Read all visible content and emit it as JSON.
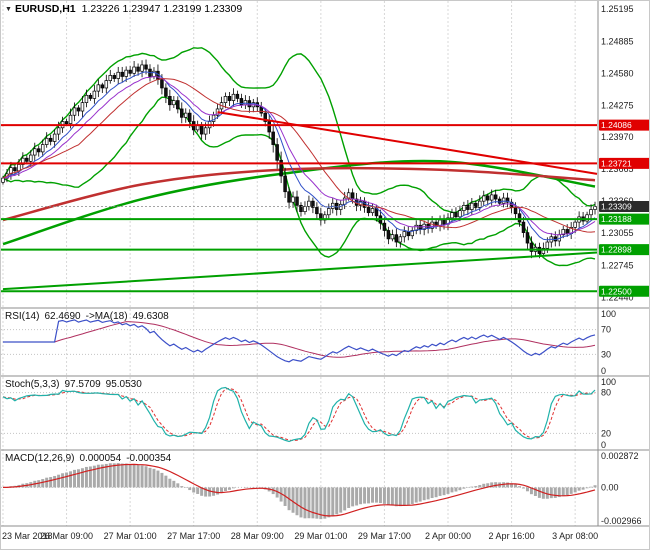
{
  "chart_data": {
    "type": "candlestick",
    "header": {
      "symbol": "EURUSD,H1",
      "ohlc": "1.23226 1.23947 1.23199 1.23309"
    },
    "bars": 150,
    "closes": [
      1.2358,
      1.2362,
      1.2368,
      1.2365,
      1.2371,
      1.2377,
      1.2374,
      1.238,
      1.2386,
      1.2383,
      1.239,
      1.2396,
      1.2393,
      1.24,
      1.2406,
      1.2412,
      1.241,
      1.2418,
      1.2425,
      1.2422,
      1.243,
      1.2437,
      1.2434,
      1.2441,
      1.2447,
      1.2444,
      1.2451,
      1.2456,
      1.2453,
      1.2459,
      1.2455,
      1.2461,
      1.2458,
      1.2464,
      1.246,
      1.2466,
      1.2462,
      1.2455,
      1.246,
      1.2452,
      1.2444,
      1.2436,
      1.2428,
      1.2432,
      1.2424,
      1.2416,
      1.242,
      1.2412,
      1.2404,
      1.2408,
      1.24,
      1.2406,
      1.2412,
      1.2418,
      1.2424,
      1.243,
      1.2436,
      1.2432,
      1.2438,
      1.2434,
      1.2428,
      1.2432,
      1.2426,
      1.243,
      1.2426,
      1.242,
      1.2412,
      1.2402,
      1.239,
      1.2375,
      1.236,
      1.2345,
      1.2335,
      1.234,
      1.2332,
      1.2326,
      1.2331,
      1.2336,
      1.233,
      1.2324,
      1.2318,
      1.2323,
      1.2329,
      1.2334,
      1.2328,
      1.2333,
      1.2339,
      1.2344,
      1.2338,
      1.2332,
      1.2336,
      1.233,
      1.2325,
      1.2329,
      1.2322,
      1.2315,
      1.2308,
      1.23,
      1.2304,
      1.2297,
      1.2302,
      1.2307,
      1.2303,
      1.2308,
      1.2313,
      1.2309,
      1.2314,
      1.231,
      1.2316,
      1.2312,
      1.2318,
      1.2314,
      1.232,
      1.2325,
      1.2321,
      1.2327,
      1.2332,
      1.2328,
      1.2334,
      1.233,
      1.2336,
      1.2341,
      1.2337,
      1.2342,
      1.2338,
      1.2334,
      1.2339,
      1.2335,
      1.233,
      1.2324,
      1.2316,
      1.2306,
      1.2296,
      1.2288,
      1.2292,
      1.2286,
      1.2291,
      1.2297,
      1.2302,
      1.2298,
      1.2304,
      1.2309,
      1.2305,
      1.2311,
      1.2316,
      1.2321,
      1.2317,
      1.2323,
      1.2328,
      1.23309
    ],
    "price_axis": {
      "top": 1.2527,
      "bottom": 1.2235,
      "ticks": [
        "1.25195",
        "1.24885",
        "1.24580",
        "1.24275",
        "1.23970",
        "1.23665",
        "1.23360",
        "1.23055",
        "1.22745",
        "1.22440"
      ]
    },
    "time_axis": {
      "labels": [
        "23 Mar 2018",
        "26 Mar 09:00",
        "27 Mar 01:00",
        "27 Mar 17:00",
        "28 Mar 09:00",
        "29 Mar 01:00",
        "29 Mar 17:00",
        "2 Apr 00:00",
        "2 Apr 16:00",
        "3 Apr 08:00"
      ],
      "bars": [
        0,
        16,
        32,
        48,
        64,
        80,
        96,
        112,
        128,
        144
      ]
    },
    "levels": [
      {
        "price": 1.24086,
        "label": "1.24086",
        "color": "#e00000",
        "width": 2
      },
      {
        "price": 1.23721,
        "label": "1.23721",
        "color": "#e00000",
        "width": 2
      },
      {
        "price": 1.23188,
        "label": "1.23188",
        "color": "#00a000",
        "width": 2
      },
      {
        "price": 1.22898,
        "label": "1.22898",
        "color": "#00a000",
        "width": 2
      },
      {
        "price": 1.225,
        "label": "1.22500",
        "color": "#00a000",
        "width": 2
      }
    ],
    "current_price": {
      "price": 1.23309,
      "label": "1.23309",
      "color": "#2b2b2b"
    },
    "trendlines": [
      {
        "from": [
          54,
          1.2421
        ],
        "to": [
          149.5,
          1.2362
        ],
        "color": "#e00000",
        "width": 2
      },
      {
        "from": [
          0,
          1.2252
        ],
        "to": [
          149.5,
          1.2287
        ],
        "color": "#00a000",
        "width": 2
      }
    ],
    "ma_curves": [
      {
        "color": "#00a000",
        "width": 2.5,
        "points": [
          [
            0,
            1.2295
          ],
          [
            35,
            1.2338
          ],
          [
            70,
            1.2362
          ],
          [
            110,
            1.2374
          ],
          [
            149,
            1.235
          ]
        ]
      },
      {
        "color": "#c03030",
        "width": 2.5,
        "points": [
          [
            0,
            1.2318
          ],
          [
            35,
            1.2352
          ],
          [
            70,
            1.2366
          ],
          [
            110,
            1.2366
          ],
          [
            149,
            1.2356
          ]
        ]
      }
    ],
    "overlays": {
      "bollinger": {
        "period": 20,
        "deviation": 2,
        "color": "#00a000",
        "width": 1.4
      },
      "mas": [
        {
          "type": "ema",
          "period": 8,
          "color": "#3050c8",
          "width": 1
        },
        {
          "type": "ema",
          "period": 13,
          "color": "#9932cc",
          "width": 1
        },
        {
          "type": "sma",
          "period": 20,
          "color": "#c03030",
          "width": 1
        }
      ]
    },
    "panels": {
      "rsi": {
        "name": "RSI(14)",
        "value": "62.4690",
        "ma_name": "->MA(18)",
        "ma_value": "49.6308",
        "period": 14,
        "ma_period": 18,
        "levels": [
          70,
          30
        ],
        "ticks": [
          "100",
          "70",
          "30",
          "0"
        ],
        "color": "#3c50c8",
        "ma_color": "#b03060"
      },
      "stoch": {
        "name": "Stoch(5,3,3)",
        "value": "97.5709",
        "signal_value": "95.0530",
        "k_period": 5,
        "d_period": 3,
        "slowing": 3,
        "levels": [
          80,
          20
        ],
        "ticks": [
          "100",
          "80",
          "20",
          "0"
        ],
        "k_color": "#20b2aa",
        "d_color": "#e03030"
      },
      "macd": {
        "name": "MACD(12,26,9)",
        "value": "0.000054",
        "signal_value": "-0.000354",
        "fast": 12,
        "slow": 26,
        "signal": 9,
        "ticks": [
          "0.002872",
          "0.00",
          "-0.002966"
        ],
        "range": [
          -0.002966,
          0.002872
        ],
        "hist_color": "#aaaaaa",
        "signal_color": "#d02020"
      }
    }
  }
}
